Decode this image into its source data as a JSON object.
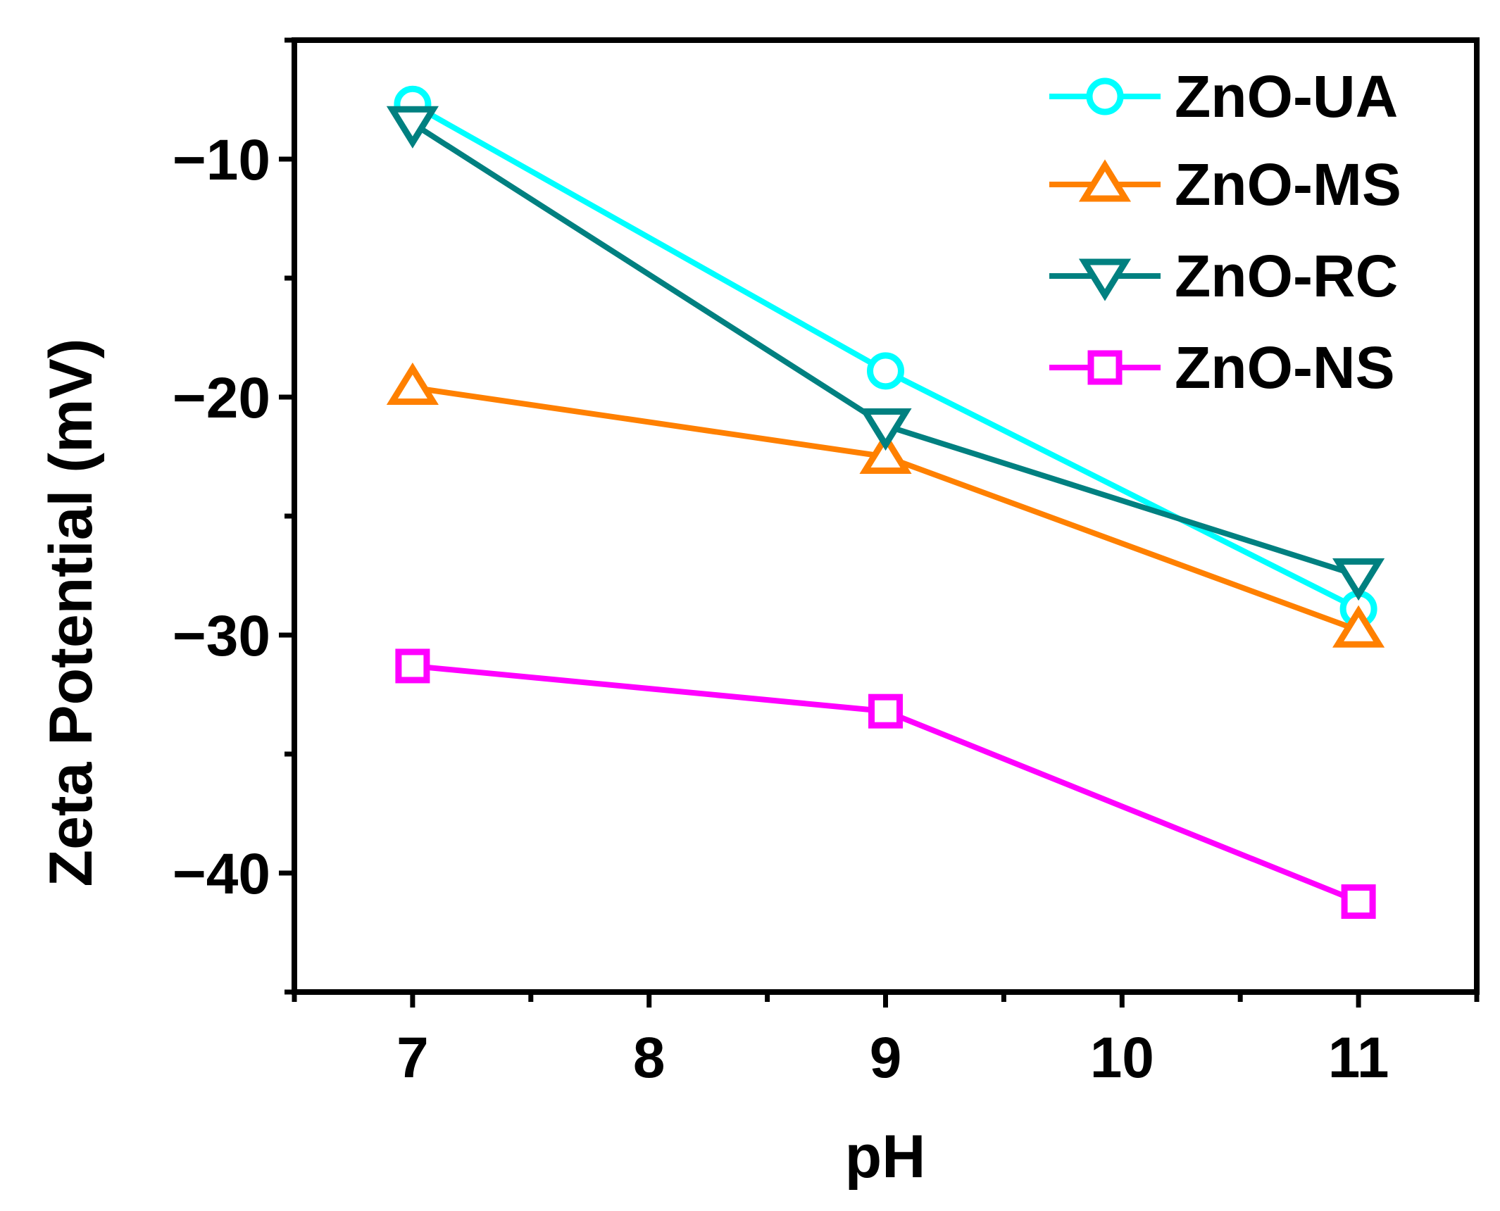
{
  "chart_data": {
    "type": "line",
    "title": "",
    "xlabel": "pH",
    "ylabel": "Zeta Potential (mV)",
    "xlim": [
      6.5,
      11.5
    ],
    "ylim": [
      -45,
      -5
    ],
    "x_ticks": [
      7,
      8,
      9,
      10,
      11
    ],
    "x_tick_labels": [
      "7",
      "8",
      "9",
      "10",
      "11"
    ],
    "y_ticks": [
      -10,
      -20,
      -30,
      -40
    ],
    "y_tick_labels": [
      "−10",
      "−20",
      "−30",
      "−40"
    ],
    "legend_position": "top-right",
    "series": [
      {
        "name": "ZnO-UA",
        "color": "#00ffff",
        "marker": "circle",
        "x": [
          7,
          9,
          11
        ],
        "y": [
          -7.7,
          -18.9,
          -28.9
        ]
      },
      {
        "name": "ZnO-MS",
        "color": "#ff8000",
        "marker": "triangle-up",
        "x": [
          7,
          9,
          11
        ],
        "y": [
          -19.6,
          -22.5,
          -29.8
        ]
      },
      {
        "name": "ZnO-RC",
        "color": "#008080",
        "marker": "triangle-down",
        "x": [
          7,
          9,
          11
        ],
        "y": [
          -8.5,
          -21.2,
          -27.5
        ]
      },
      {
        "name": "ZnO-NS",
        "color": "#ff00ff",
        "marker": "square",
        "x": [
          7,
          9,
          11
        ],
        "y": [
          -31.3,
          -33.2,
          -41.2
        ]
      }
    ]
  }
}
